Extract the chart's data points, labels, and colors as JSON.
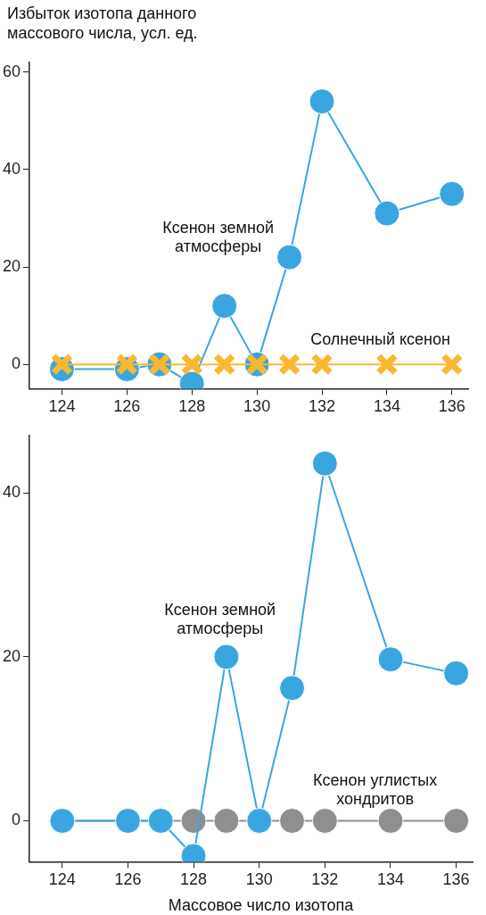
{
  "chart_data": [
    {
      "type": "line",
      "ylabel": "Избыток изотопа данного массового числа, усл. ед.",
      "xlim": [
        123,
        136.5
      ],
      "xticks": [
        124,
        126,
        128,
        130,
        132,
        134,
        136
      ],
      "ylim": [
        -5,
        62
      ],
      "yticks": [
        0,
        20,
        40,
        60
      ],
      "grid": false,
      "legend": false,
      "series": [
        {
          "name": "Ксенон земной атмосферы",
          "color": "#3aa6e0",
          "marker": "circle",
          "x": [
            124,
            126,
            127,
            128,
            129,
            130,
            131,
            132,
            134,
            136
          ],
          "values": [
            -1,
            -1,
            0,
            -4,
            12,
            0,
            22,
            54,
            31,
            35
          ]
        },
        {
          "name": "Солнечный ксенон",
          "color": "#f8b830",
          "marker": "cross",
          "x": [
            124,
            126,
            127,
            128,
            129,
            130,
            131,
            132,
            134,
            136
          ],
          "values": [
            0,
            0,
            0,
            0,
            0,
            0,
            0,
            0,
            0,
            0
          ]
        }
      ]
    },
    {
      "type": "line",
      "xlabel": "Массовое число изотопа",
      "xlim": [
        123,
        136.5
      ],
      "xticks": [
        124,
        126,
        128,
        130,
        132,
        134,
        136
      ],
      "ylim": [
        -5,
        47
      ],
      "yticks": [
        0,
        20,
        40
      ],
      "grid": false,
      "legend": false,
      "series": [
        {
          "name": "Ксенон углистых хондритов",
          "color": "#8f8f8f",
          "marker": "circle",
          "x": [
            124,
            126,
            127,
            128,
            129,
            130,
            131,
            132,
            134,
            136
          ],
          "values": [
            0,
            0,
            0,
            0,
            0,
            0,
            0,
            0,
            0,
            0
          ]
        },
        {
          "name": "Ксенон земной атмосферы",
          "color": "#3aa6e0",
          "marker": "circle",
          "x": [
            124,
            126,
            127,
            128,
            129,
            130,
            131,
            132,
            134,
            136
          ],
          "values": [
            0,
            0,
            0,
            -4.3,
            20,
            0,
            16.2,
            43.6,
            19.7,
            18
          ]
        }
      ]
    }
  ]
}
